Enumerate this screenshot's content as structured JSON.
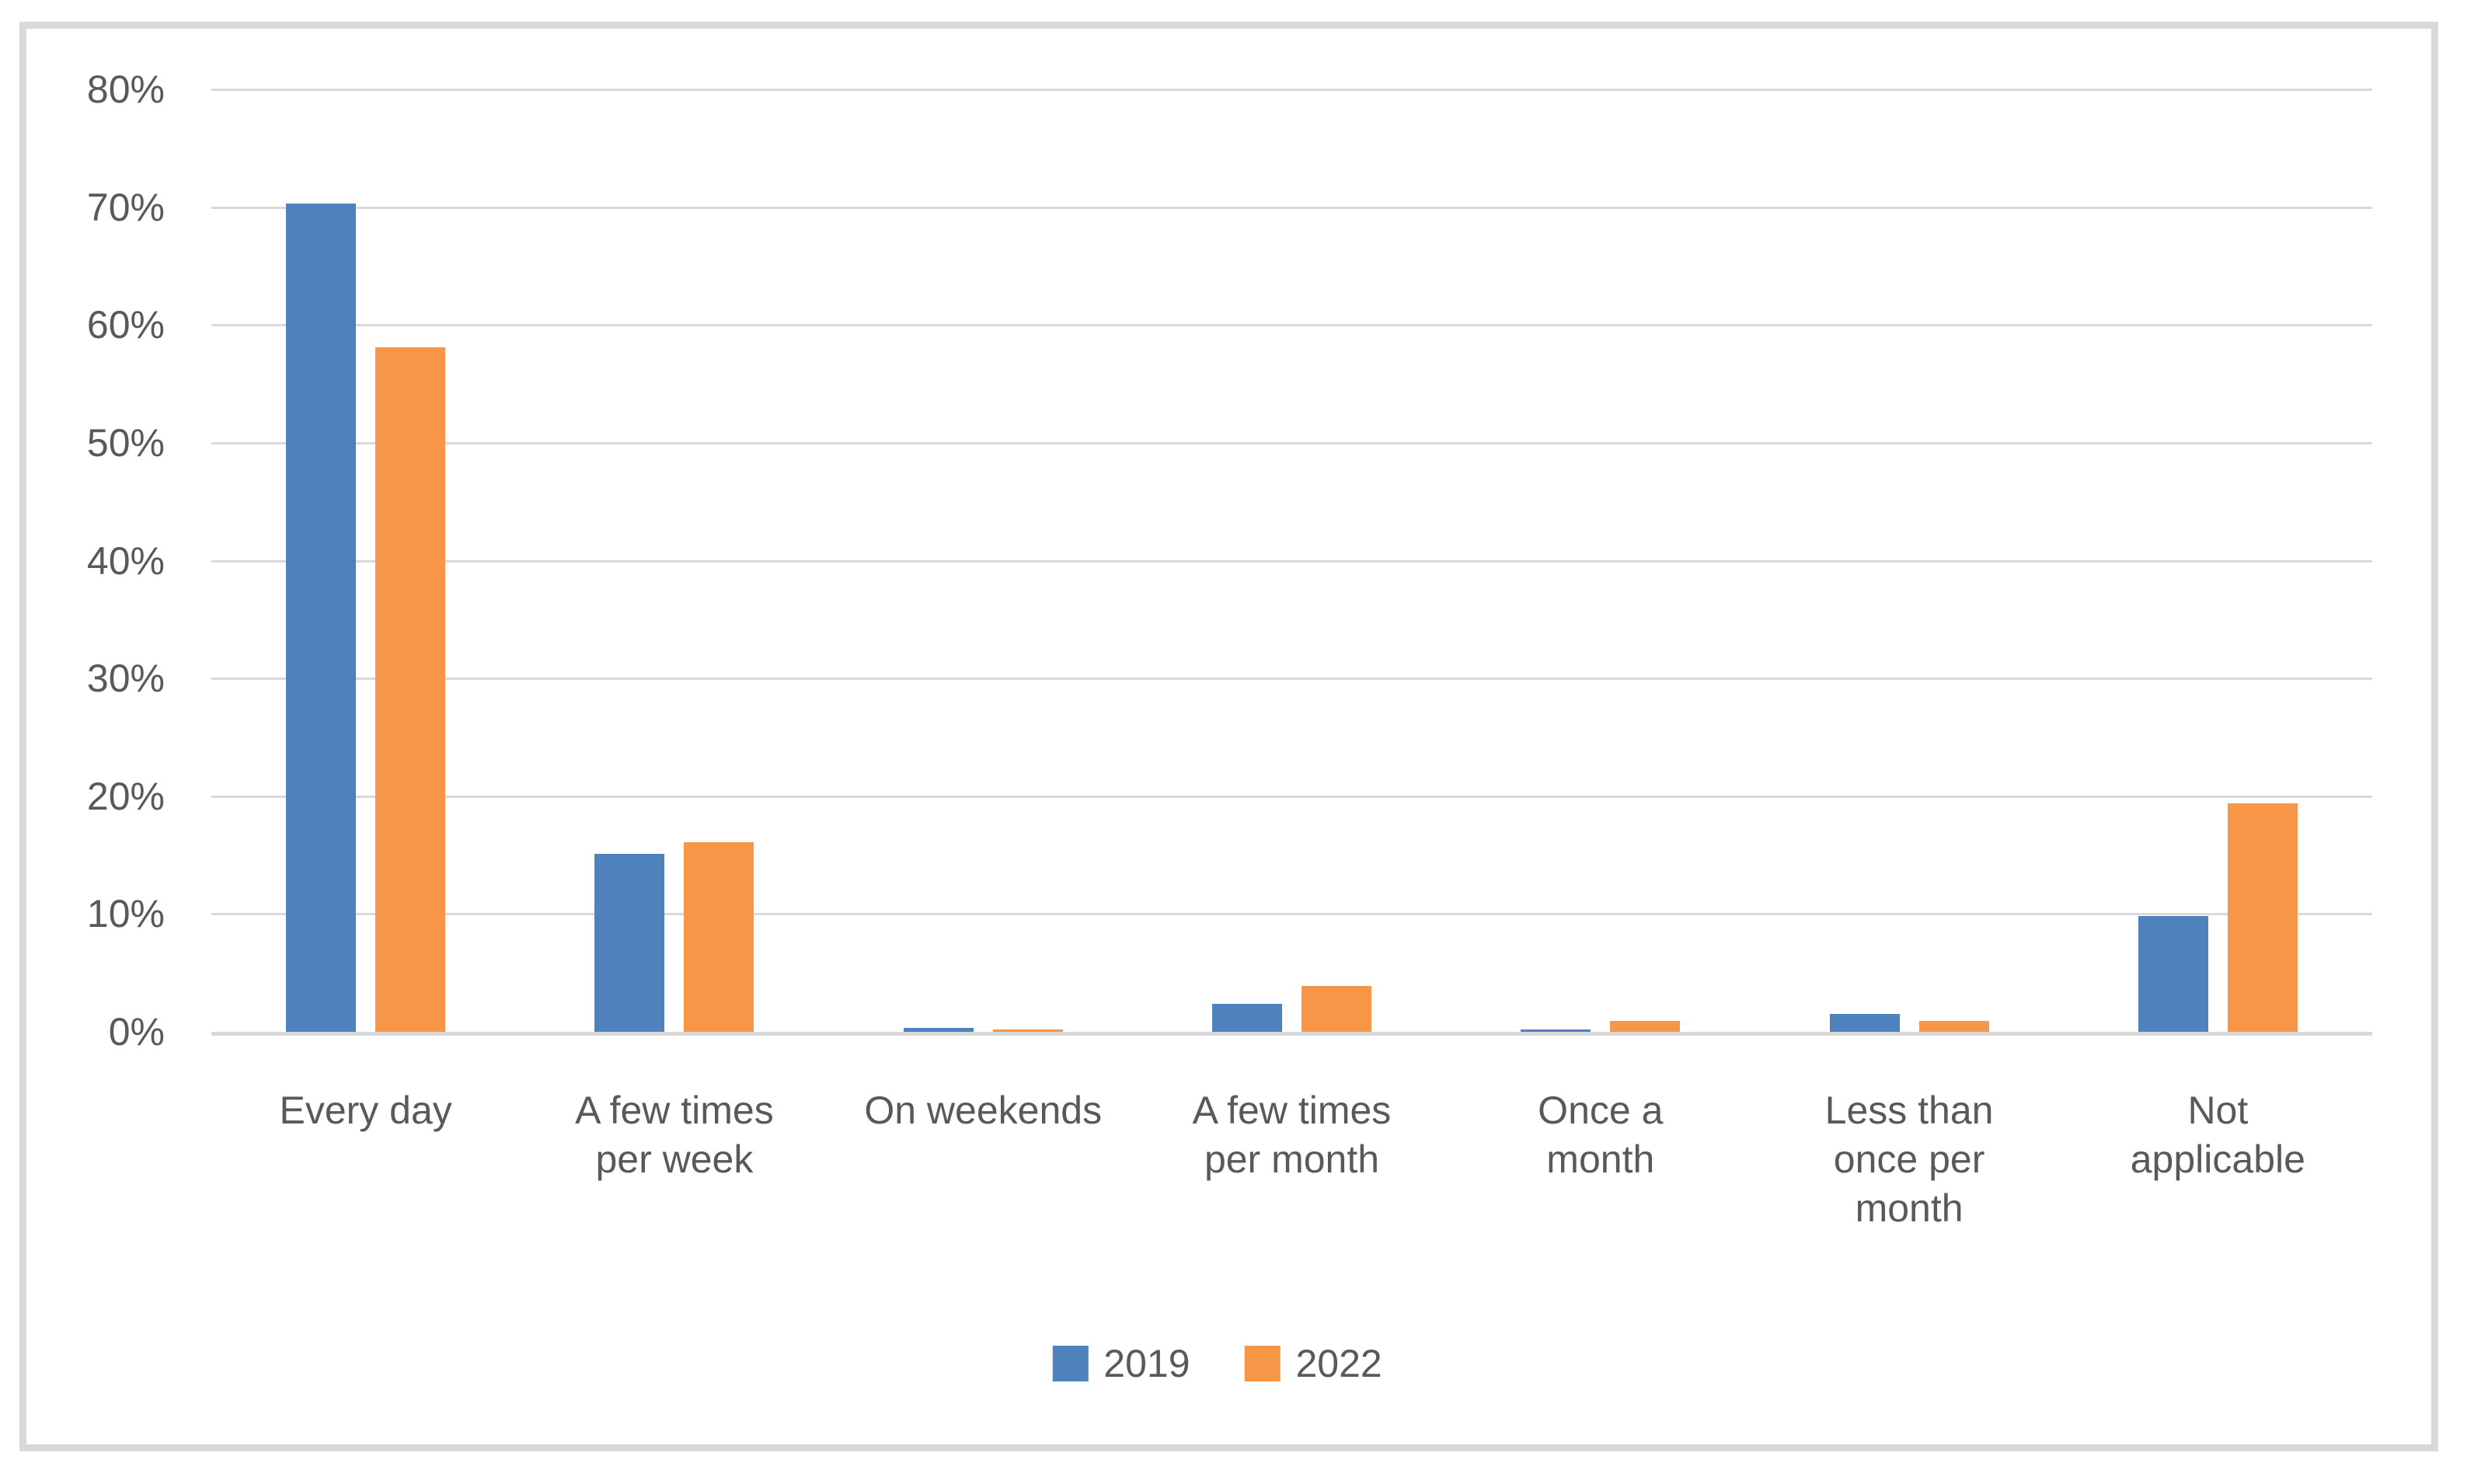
{
  "chart_data": {
    "type": "bar",
    "title": "",
    "xlabel": "",
    "ylabel": "",
    "categories": [
      "Every day",
      "A few times per week",
      "On weekends",
      "A few times per month",
      "Once a month",
      "Less than once per month",
      "Not applicable"
    ],
    "category_label_lines": [
      "Every day",
      "A few times\nper week",
      "On weekends",
      "A few times\nper month",
      "Once a\nmonth",
      "Less than\nonce per\nmonth",
      "Not\napplicable"
    ],
    "series": [
      {
        "name": "2019",
        "color": "#4F81BD",
        "values": [
          70.3,
          15.1,
          0.3,
          2.4,
          0.2,
          1.5,
          9.8
        ]
      },
      {
        "name": "2022",
        "color": "#F79646",
        "values": [
          58.1,
          16.1,
          0.2,
          3.9,
          0.9,
          0.9,
          19.4
        ]
      }
    ],
    "ylim": [
      0,
      80
    ],
    "y_ticks": [
      "0%",
      "10%",
      "20%",
      "30%",
      "40%",
      "50%",
      "60%",
      "70%",
      "80%"
    ],
    "grid": "horizontal-only",
    "legend_position": "bottom-center"
  },
  "colors": {
    "frame_border": "#D9D9D9",
    "gridline": "#D9D9D9",
    "axis_line": "#D9D9D9",
    "text": "#595959",
    "series_2019": "#4F81BD",
    "series_2022": "#F79646",
    "background": "#FFFFFF"
  }
}
